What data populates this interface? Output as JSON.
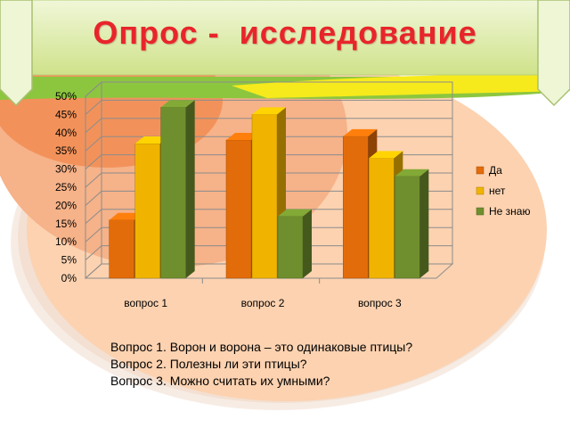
{
  "slide": {
    "title": "Опрос -  исследование",
    "colors": {
      "title": "#e8252a",
      "banner": "#d9eaa0",
      "peach": "#fcd2b0",
      "orange_blob": "#f2925a",
      "yellow_stripe": "#f6ea1c",
      "green_stripe": "#8cc63f"
    }
  },
  "chart_data": {
    "type": "bar",
    "categories": [
      "вопрос 1",
      "вопрос 2",
      "вопрос 3"
    ],
    "series": [
      {
        "name": "Да",
        "color": "#e36c0a",
        "values": [
          16,
          38,
          39
        ]
      },
      {
        "name": "нет",
        "color": "#f0b400",
        "values": [
          37,
          45,
          33
        ]
      },
      {
        "name": "Не знаю",
        "color": "#6f8f2e",
        "values": [
          47,
          17,
          28
        ]
      }
    ],
    "ylim": [
      0,
      50
    ],
    "yticks": [
      "0%",
      "5%",
      "10%",
      "15%",
      "20%",
      "25%",
      "30%",
      "35%",
      "40%",
      "45%",
      "50%"
    ],
    "grid": true,
    "legend": "right",
    "style": "3d"
  },
  "notes": [
    "Вопрос 1. Ворон и ворона – это одинаковые птицы?",
    "Вопрос 2. Полезны ли эти птицы?",
    "Вопрос 3. Можно считать их умными?"
  ]
}
